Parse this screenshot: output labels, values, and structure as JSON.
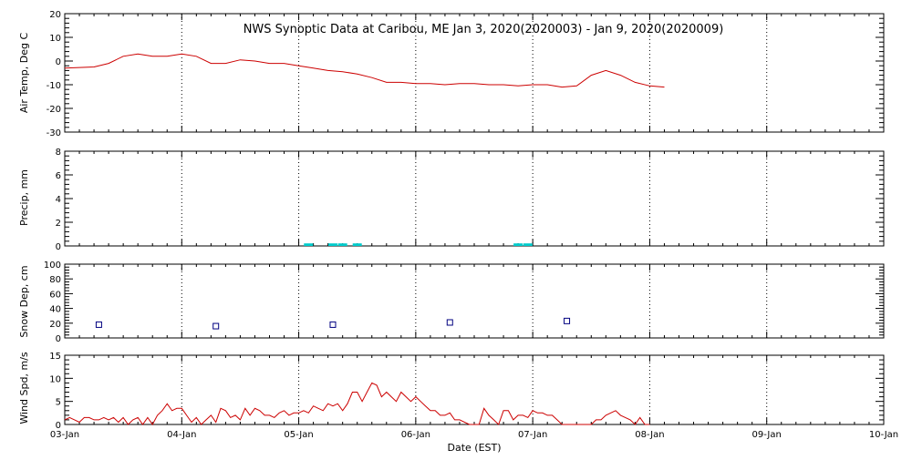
{
  "colors": {
    "temp_line": "#cc0000",
    "precip_bar": "#00cccc",
    "snow_marker": "#000080",
    "wind_line": "#cc0000",
    "axes": "#000000"
  },
  "chart_data": [
    {
      "type": "line",
      "title": "NWS Synoptic Data at Caribou, ME   Jan  3, 2020(2020003) - Jan  9, 2020(2020009)",
      "ylabel": "Air Temp, Deg C",
      "ylim": [
        -30,
        20
      ],
      "yticks": [
        20,
        10,
        0,
        -10,
        -20,
        -30
      ],
      "x_range": [
        "2020-01-03 00:00",
        "2020-01-10 00:00"
      ],
      "grid": true,
      "series": [
        {
          "x": [
            "2020-01-03 00:00",
            "2020-01-03 06:00",
            "2020-01-03 09:00",
            "2020-01-03 12:00",
            "2020-01-03 15:00",
            "2020-01-03 18:00",
            "2020-01-03 21:00",
            "2020-01-04 00:00",
            "2020-01-04 03:00",
            "2020-01-04 06:00",
            "2020-01-04 09:00",
            "2020-01-04 12:00",
            "2020-01-04 15:00",
            "2020-01-04 18:00",
            "2020-01-04 21:00",
            "2020-01-05 00:00",
            "2020-01-05 03:00",
            "2020-01-05 06:00",
            "2020-01-05 09:00",
            "2020-01-05 12:00",
            "2020-01-05 15:00",
            "2020-01-05 18:00",
            "2020-01-05 21:00",
            "2020-01-06 00:00",
            "2020-01-06 03:00",
            "2020-01-06 06:00",
            "2020-01-06 09:00",
            "2020-01-06 12:00",
            "2020-01-06 15:00",
            "2020-01-06 18:00",
            "2020-01-06 21:00",
            "2020-01-07 00:00",
            "2020-01-07 03:00",
            "2020-01-07 06:00",
            "2020-01-07 09:00",
            "2020-01-07 12:00",
            "2020-01-07 15:00",
            "2020-01-07 18:00",
            "2020-01-07 21:00",
            "2020-01-08 00:00",
            "2020-01-08 03:00"
          ],
          "values": [
            -3,
            -2.5,
            -1,
            2,
            3,
            2,
            2,
            3,
            2,
            -1,
            -1,
            0.5,
            0,
            -1,
            -1,
            -2,
            -3,
            -4,
            -4.5,
            -5.5,
            -7,
            -9,
            -9,
            -9.5,
            -9.5,
            -10,
            -9.5,
            -9.5,
            -10,
            -10,
            -10.5,
            -10,
            -10,
            -11,
            -10.5,
            -6,
            -4,
            -6,
            -9,
            -10.5,
            -11
          ]
        }
      ]
    },
    {
      "type": "bar",
      "ylabel": "Precip, mm",
      "ylim": [
        0,
        8
      ],
      "yticks": [
        0,
        2,
        4,
        6,
        8
      ],
      "x_range": [
        "2020-01-03 00:00",
        "2020-01-10 00:00"
      ],
      "grid": true,
      "series": [
        {
          "x": [
            "2020-01-05 02:00",
            "2020-01-05 07:00",
            "2020-01-05 09:00",
            "2020-01-05 12:00",
            "2020-01-06 21:00",
            "2020-01-06 23:00"
          ],
          "values": [
            0.1,
            0.1,
            0.1,
            0.1,
            0.1,
            0.1
          ]
        }
      ]
    },
    {
      "type": "scatter",
      "ylabel": "Snow Dep, cm",
      "ylim": [
        0,
        100
      ],
      "yticks": [
        0,
        20,
        40,
        60,
        80,
        100
      ],
      "x_range": [
        "2020-01-03 00:00",
        "2020-01-10 00:00"
      ],
      "grid": true,
      "series": [
        {
          "x": [
            "2020-01-03 07:00",
            "2020-01-04 07:00",
            "2020-01-05 07:00",
            "2020-01-06 07:00",
            "2020-01-07 07:00"
          ],
          "values": [
            18,
            16,
            18,
            21,
            23
          ]
        }
      ]
    },
    {
      "type": "line",
      "ylabel": "Wind Spd, m/s",
      "xlabel": "Date (EST)",
      "ylim": [
        0,
        15
      ],
      "yticks": [
        0,
        5,
        10,
        15
      ],
      "x_range": [
        "2020-01-03 00:00",
        "2020-01-10 00:00"
      ],
      "xticks": [
        "03-Jan",
        "04-Jan",
        "05-Jan",
        "06-Jan",
        "07-Jan",
        "08-Jan",
        "09-Jan",
        "10-Jan"
      ],
      "grid": true,
      "series": [
        {
          "x": [
            "2020-01-03 00:00",
            "2020-01-03 01:00",
            "2020-01-03 02:00",
            "2020-01-03 03:00",
            "2020-01-03 04:00",
            "2020-01-03 05:00",
            "2020-01-03 06:00",
            "2020-01-03 07:00",
            "2020-01-03 08:00",
            "2020-01-03 09:00",
            "2020-01-03 10:00",
            "2020-01-03 11:00",
            "2020-01-03 12:00",
            "2020-01-03 13:00",
            "2020-01-03 14:00",
            "2020-01-03 15:00",
            "2020-01-03 16:00",
            "2020-01-03 17:00",
            "2020-01-03 18:00",
            "2020-01-03 19:00",
            "2020-01-03 20:00",
            "2020-01-03 21:00",
            "2020-01-03 22:00",
            "2020-01-03 23:00",
            "2020-01-04 00:00",
            "2020-01-04 01:00",
            "2020-01-04 02:00",
            "2020-01-04 03:00",
            "2020-01-04 04:00",
            "2020-01-04 05:00",
            "2020-01-04 06:00",
            "2020-01-04 07:00",
            "2020-01-04 08:00",
            "2020-01-04 09:00",
            "2020-01-04 10:00",
            "2020-01-04 11:00",
            "2020-01-04 12:00",
            "2020-01-04 13:00",
            "2020-01-04 14:00",
            "2020-01-04 15:00",
            "2020-01-04 16:00",
            "2020-01-04 17:00",
            "2020-01-04 18:00",
            "2020-01-04 19:00",
            "2020-01-04 20:00",
            "2020-01-04 21:00",
            "2020-01-04 22:00",
            "2020-01-04 23:00",
            "2020-01-05 00:00",
            "2020-01-05 01:00",
            "2020-01-05 02:00",
            "2020-01-05 03:00",
            "2020-01-05 04:00",
            "2020-01-05 05:00",
            "2020-01-05 06:00",
            "2020-01-05 07:00",
            "2020-01-05 08:00",
            "2020-01-05 09:00",
            "2020-01-05 10:00",
            "2020-01-05 11:00",
            "2020-01-05 12:00",
            "2020-01-05 13:00",
            "2020-01-05 14:00",
            "2020-01-05 15:00",
            "2020-01-05 16:00",
            "2020-01-05 17:00",
            "2020-01-05 18:00",
            "2020-01-05 19:00",
            "2020-01-05 20:00",
            "2020-01-05 21:00",
            "2020-01-05 22:00",
            "2020-01-05 23:00",
            "2020-01-06 00:00",
            "2020-01-06 01:00",
            "2020-01-06 02:00",
            "2020-01-06 03:00",
            "2020-01-06 04:00",
            "2020-01-06 05:00",
            "2020-01-06 06:00",
            "2020-01-06 07:00",
            "2020-01-06 08:00",
            "2020-01-06 09:00",
            "2020-01-06 10:00",
            "2020-01-06 11:00",
            "2020-01-06 12:00",
            "2020-01-06 13:00",
            "2020-01-06 14:00",
            "2020-01-06 15:00",
            "2020-01-06 16:00",
            "2020-01-06 17:00",
            "2020-01-06 18:00",
            "2020-01-06 19:00",
            "2020-01-06 20:00",
            "2020-01-06 21:00",
            "2020-01-06 22:00",
            "2020-01-06 23:00",
            "2020-01-07 00:00",
            "2020-01-07 01:00",
            "2020-01-07 02:00",
            "2020-01-07 03:00",
            "2020-01-07 04:00",
            "2020-01-07 05:00",
            "2020-01-07 06:00",
            "2020-01-07 07:00",
            "2020-01-07 08:00",
            "2020-01-07 09:00",
            "2020-01-07 10:00",
            "2020-01-07 11:00",
            "2020-01-07 12:00",
            "2020-01-07 13:00",
            "2020-01-07 14:00",
            "2020-01-07 15:00",
            "2020-01-07 16:00",
            "2020-01-07 17:00",
            "2020-01-07 18:00",
            "2020-01-07 19:00",
            "2020-01-07 20:00",
            "2020-01-07 21:00",
            "2020-01-07 22:00",
            "2020-01-07 23:00",
            "2020-01-08 00:00"
          ],
          "values": [
            1,
            1.5,
            1,
            0.5,
            1.5,
            1.5,
            1,
            1,
            1.5,
            1,
            1.5,
            0.5,
            1.5,
            0,
            1,
            1.5,
            0,
            1.5,
            0,
            2,
            3,
            4.5,
            3,
            3.5,
            3.5,
            2,
            0.5,
            1.5,
            0,
            1,
            2,
            0.5,
            3.5,
            3,
            1.5,
            2,
            1,
            3.5,
            2,
            3.5,
            3,
            2,
            2,
            1.5,
            2.5,
            3,
            2,
            2.5,
            2.5,
            3,
            2.5,
            4,
            3.5,
            3,
            4.5,
            4,
            4.5,
            3,
            4.5,
            7,
            7,
            5,
            7,
            9,
            8.5,
            6,
            7,
            6,
            5,
            7,
            6,
            5,
            6,
            5,
            4,
            3,
            3,
            2,
            2,
            2.5,
            1,
            1,
            0.5,
            0,
            0,
            0,
            3.5,
            2,
            1,
            0,
            3,
            3,
            1,
            2,
            2,
            1.5,
            3,
            2.5,
            2.5,
            2,
            2,
            1,
            0,
            0,
            0,
            0,
            0,
            0,
            0,
            1,
            1,
            2,
            2.5,
            3,
            2,
            1.5,
            1,
            0,
            1.5,
            0,
            0
          ]
        }
      ]
    }
  ]
}
